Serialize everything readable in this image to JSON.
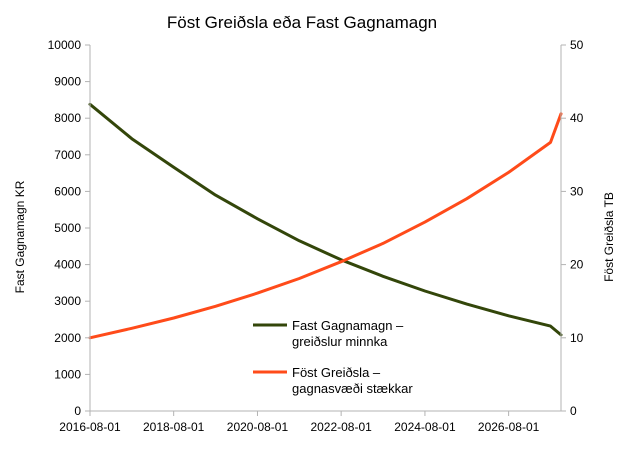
{
  "chart_data": {
    "type": "line",
    "title": "Föst Greiðsla eða Fast Gagnamagn",
    "ylabel_left": "Fast Gagnamagn KR",
    "ylabel_right": "Föst Greiðsla TB",
    "xlim": [
      "2016-08-01",
      "2027-11-01"
    ],
    "ylim_left": [
      0,
      10000
    ],
    "ylim_right": [
      0,
      50
    ],
    "x_ticks": [
      "2016-08-01",
      "2018-08-01",
      "2020-08-01",
      "2022-08-01",
      "2024-08-01",
      "2026-08-01"
    ],
    "y_ticks_left": [
      "0",
      "1000",
      "2000",
      "3000",
      "4000",
      "5000",
      "6000",
      "7000",
      "8000",
      "9000",
      "10000"
    ],
    "y_ticks_right": [
      "0",
      "10",
      "20",
      "30",
      "40",
      "50"
    ],
    "grid": false,
    "legend_position": "bottom-center",
    "series": [
      {
        "name": "Fast Gagnamagn – greiðslur minnka",
        "axis": "left",
        "color": "#33460a",
        "x": [
          "2016-08-01",
          "2017-08-01",
          "2018-08-01",
          "2019-08-01",
          "2020-08-01",
          "2021-08-01",
          "2022-08-01",
          "2023-08-01",
          "2024-08-01",
          "2025-08-01",
          "2026-08-01",
          "2027-08-01",
          "2027-11-01"
        ],
        "values": [
          8380,
          7440,
          6660,
          5900,
          5250,
          4650,
          4130,
          3680,
          3280,
          2920,
          2600,
          2320,
          2080
        ]
      },
      {
        "name": "Föst Greiðsla – gagnasvæði stækkar",
        "axis": "right",
        "color": "#ff4b1a",
        "x": [
          "2016-08-01",
          "2017-08-01",
          "2018-08-01",
          "2019-08-01",
          "2020-08-01",
          "2021-08-01",
          "2022-08-01",
          "2023-08-01",
          "2024-08-01",
          "2025-08-01",
          "2026-08-01",
          "2027-08-01",
          "2027-11-01"
        ],
        "values": [
          10.0,
          11.3,
          12.7,
          14.3,
          16.1,
          18.1,
          20.4,
          22.9,
          25.8,
          29.0,
          32.6,
          36.7,
          40.6
        ]
      }
    ]
  }
}
